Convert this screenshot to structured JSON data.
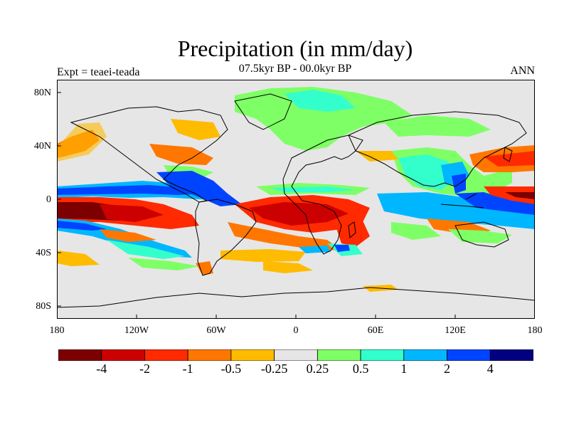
{
  "title": "Precipitation (in mm/day)",
  "subtitle": "07.5kyr BP - 00.0kyr BP",
  "experiment": "Expt = teaei-teada",
  "season": "ANN",
  "lat_ticks": [
    "80N",
    "40N",
    "0",
    "40S",
    "80S"
  ],
  "lon_ticks": [
    "180",
    "120W",
    "60W",
    "0",
    "60E",
    "120E",
    "180"
  ],
  "colorbar": {
    "labels": [
      "-4",
      "-2",
      "-1",
      "-0.5",
      "-0.25",
      "0.25",
      "0.5",
      "1",
      "2",
      "4"
    ],
    "colors": [
      "#7d0000",
      "#cc0000",
      "#ff2a00",
      "#ff7700",
      "#ffbb00",
      "#e6e6e6",
      "#7fff66",
      "#33ffcc",
      "#00b7ff",
      "#0044ff",
      "#000080"
    ]
  },
  "colors": {
    "background_field": "#e6e6e6",
    "coast": "#000000"
  }
}
